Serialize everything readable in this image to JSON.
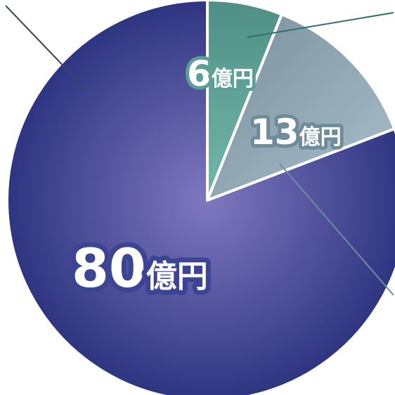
{
  "chart_data": {
    "type": "pie",
    "unit": "億円",
    "slices": [
      {
        "value": 6,
        "label_number": "6",
        "label_unit": "億円",
        "color": "#5e9f95",
        "outline": "#5e9f95"
      },
      {
        "value": 13,
        "label_number": "13",
        "label_unit": "億円",
        "color": "#8aa7b6",
        "outline": "#6f8c9a"
      },
      {
        "value": 80,
        "label_number": "80",
        "label_unit": "億円",
        "color": "#3a3d8a",
        "outline": "#3c4494"
      }
    ],
    "start_angle": "12 o'clock",
    "direction": "clockwise",
    "separator_color": "#ffffff",
    "gradient_center_color": "#7f78c0",
    "leader_line_colors": [
      "#2f6e6e",
      "#6b8ea0",
      "#3d4660"
    ]
  }
}
